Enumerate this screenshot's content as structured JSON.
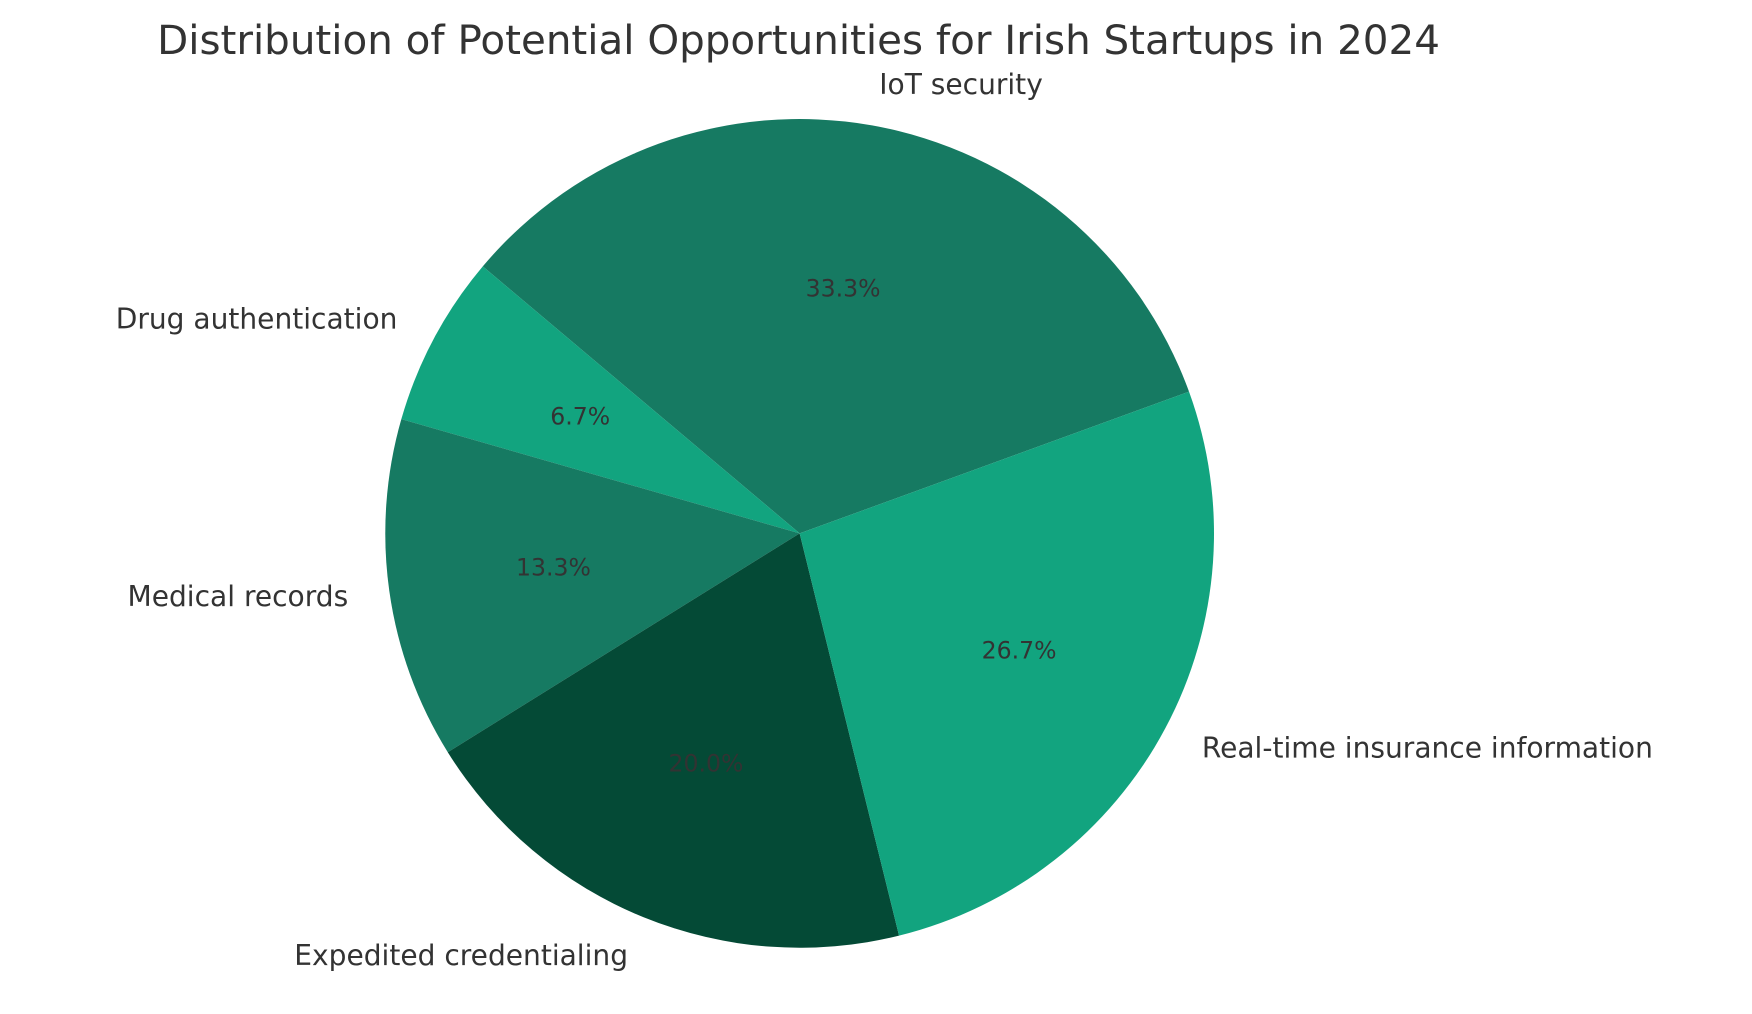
{
  "chart_data": {
    "type": "pie",
    "title": "Distribution of Potential Opportunities for Irish Startups in 2024",
    "start_angle_deg": 20,
    "direction": "counterclockwise",
    "slices": [
      {
        "label": "IoT security",
        "value": 33.3,
        "pct_label": "33.3%",
        "color": "#167a62"
      },
      {
        "label": "Drug authentication",
        "value": 6.7,
        "pct_label": "6.7%",
        "color": "#12a47f"
      },
      {
        "label": "Medical records",
        "value": 13.3,
        "pct_label": "13.3%",
        "color": "#167a62"
      },
      {
        "label": "Expedited credentialing",
        "value": 20.0,
        "pct_label": "20.0%",
        "color": "#044a36"
      },
      {
        "label": "Real-time insurance information",
        "value": 26.7,
        "pct_label": "26.7%",
        "color": "#12a47f"
      }
    ],
    "text_color": "#333333"
  }
}
